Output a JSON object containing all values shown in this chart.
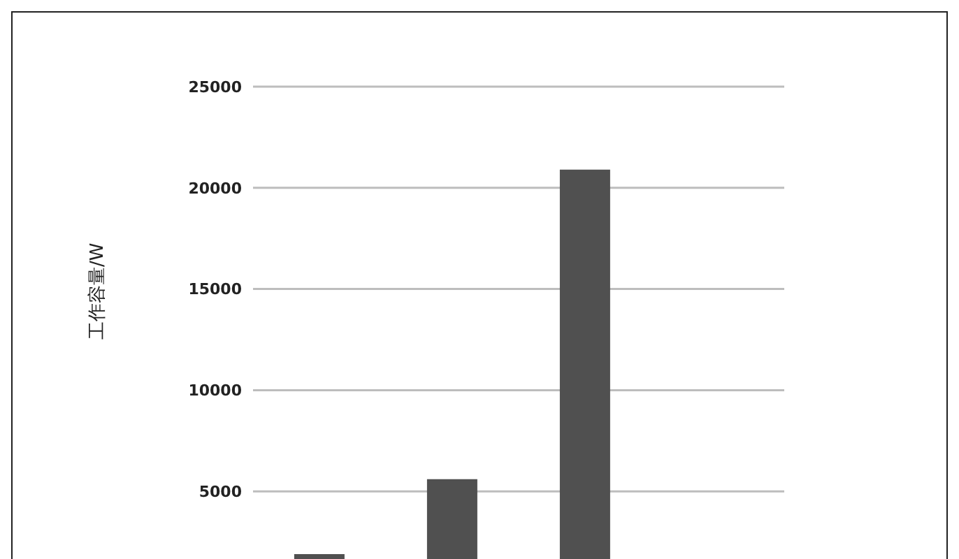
{
  "chart_data": {
    "type": "bar",
    "ylabel": "工作容量/W",
    "categories": [
      null,
      null,
      null,
      null
    ],
    "values": [
      1900,
      5600,
      20900,
      null
    ],
    "color": "#505050",
    "ylim": [
      0,
      25000
    ],
    "yticks": [
      5000,
      10000,
      15000,
      20000,
      25000
    ],
    "grid": "y"
  }
}
